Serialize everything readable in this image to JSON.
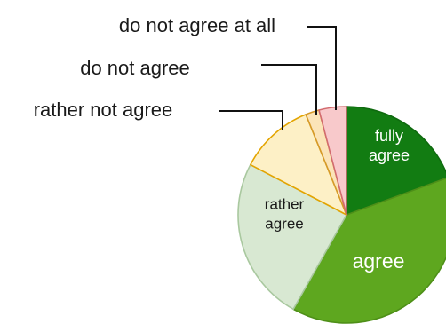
{
  "chart_data": {
    "type": "pie",
    "title": "",
    "start": "12 o'clock",
    "direction": "clockwise",
    "slices": [
      {
        "label": "fully agree",
        "label_lines": [
          "fully",
          "agree"
        ],
        "value": 19,
        "color": "#127c12",
        "edge": "#0f6a0f",
        "text_color": "#ffffff",
        "label_placement": "inside"
      },
      {
        "label": "agree",
        "label_lines": [
          "agree"
        ],
        "value": 38,
        "color": "#5ea71f",
        "edge": "#4e8f18",
        "text_color": "#ffffff",
        "label_placement": "inside"
      },
      {
        "label": "rather agree",
        "label_lines": [
          "rather",
          "agree"
        ],
        "value": 24,
        "color": "#d8e8d2",
        "edge": "#a9c89f",
        "text_color": "#1a1a1a",
        "label_placement": "inside"
      },
      {
        "label": "rather not agree",
        "label_lines": [
          "rather not agree"
        ],
        "value": 11,
        "color": "#fdf0c6",
        "edge": "#e3a400",
        "text_color": "#1a1a1a",
        "label_placement": "callout"
      },
      {
        "label": "do not agree",
        "label_lines": [
          "do not agree"
        ],
        "value": 2,
        "color": "#fbe4b8",
        "edge": "#d59a2a",
        "text_color": "#1a1a1a",
        "label_placement": "callout"
      },
      {
        "label": "do not agree at all",
        "label_lines": [
          "do not agree at all"
        ],
        "value": 4,
        "color": "#f8c9cb",
        "edge": "#d26b6f",
        "text_color": "#1a1a1a",
        "label_placement": "callout"
      }
    ]
  }
}
